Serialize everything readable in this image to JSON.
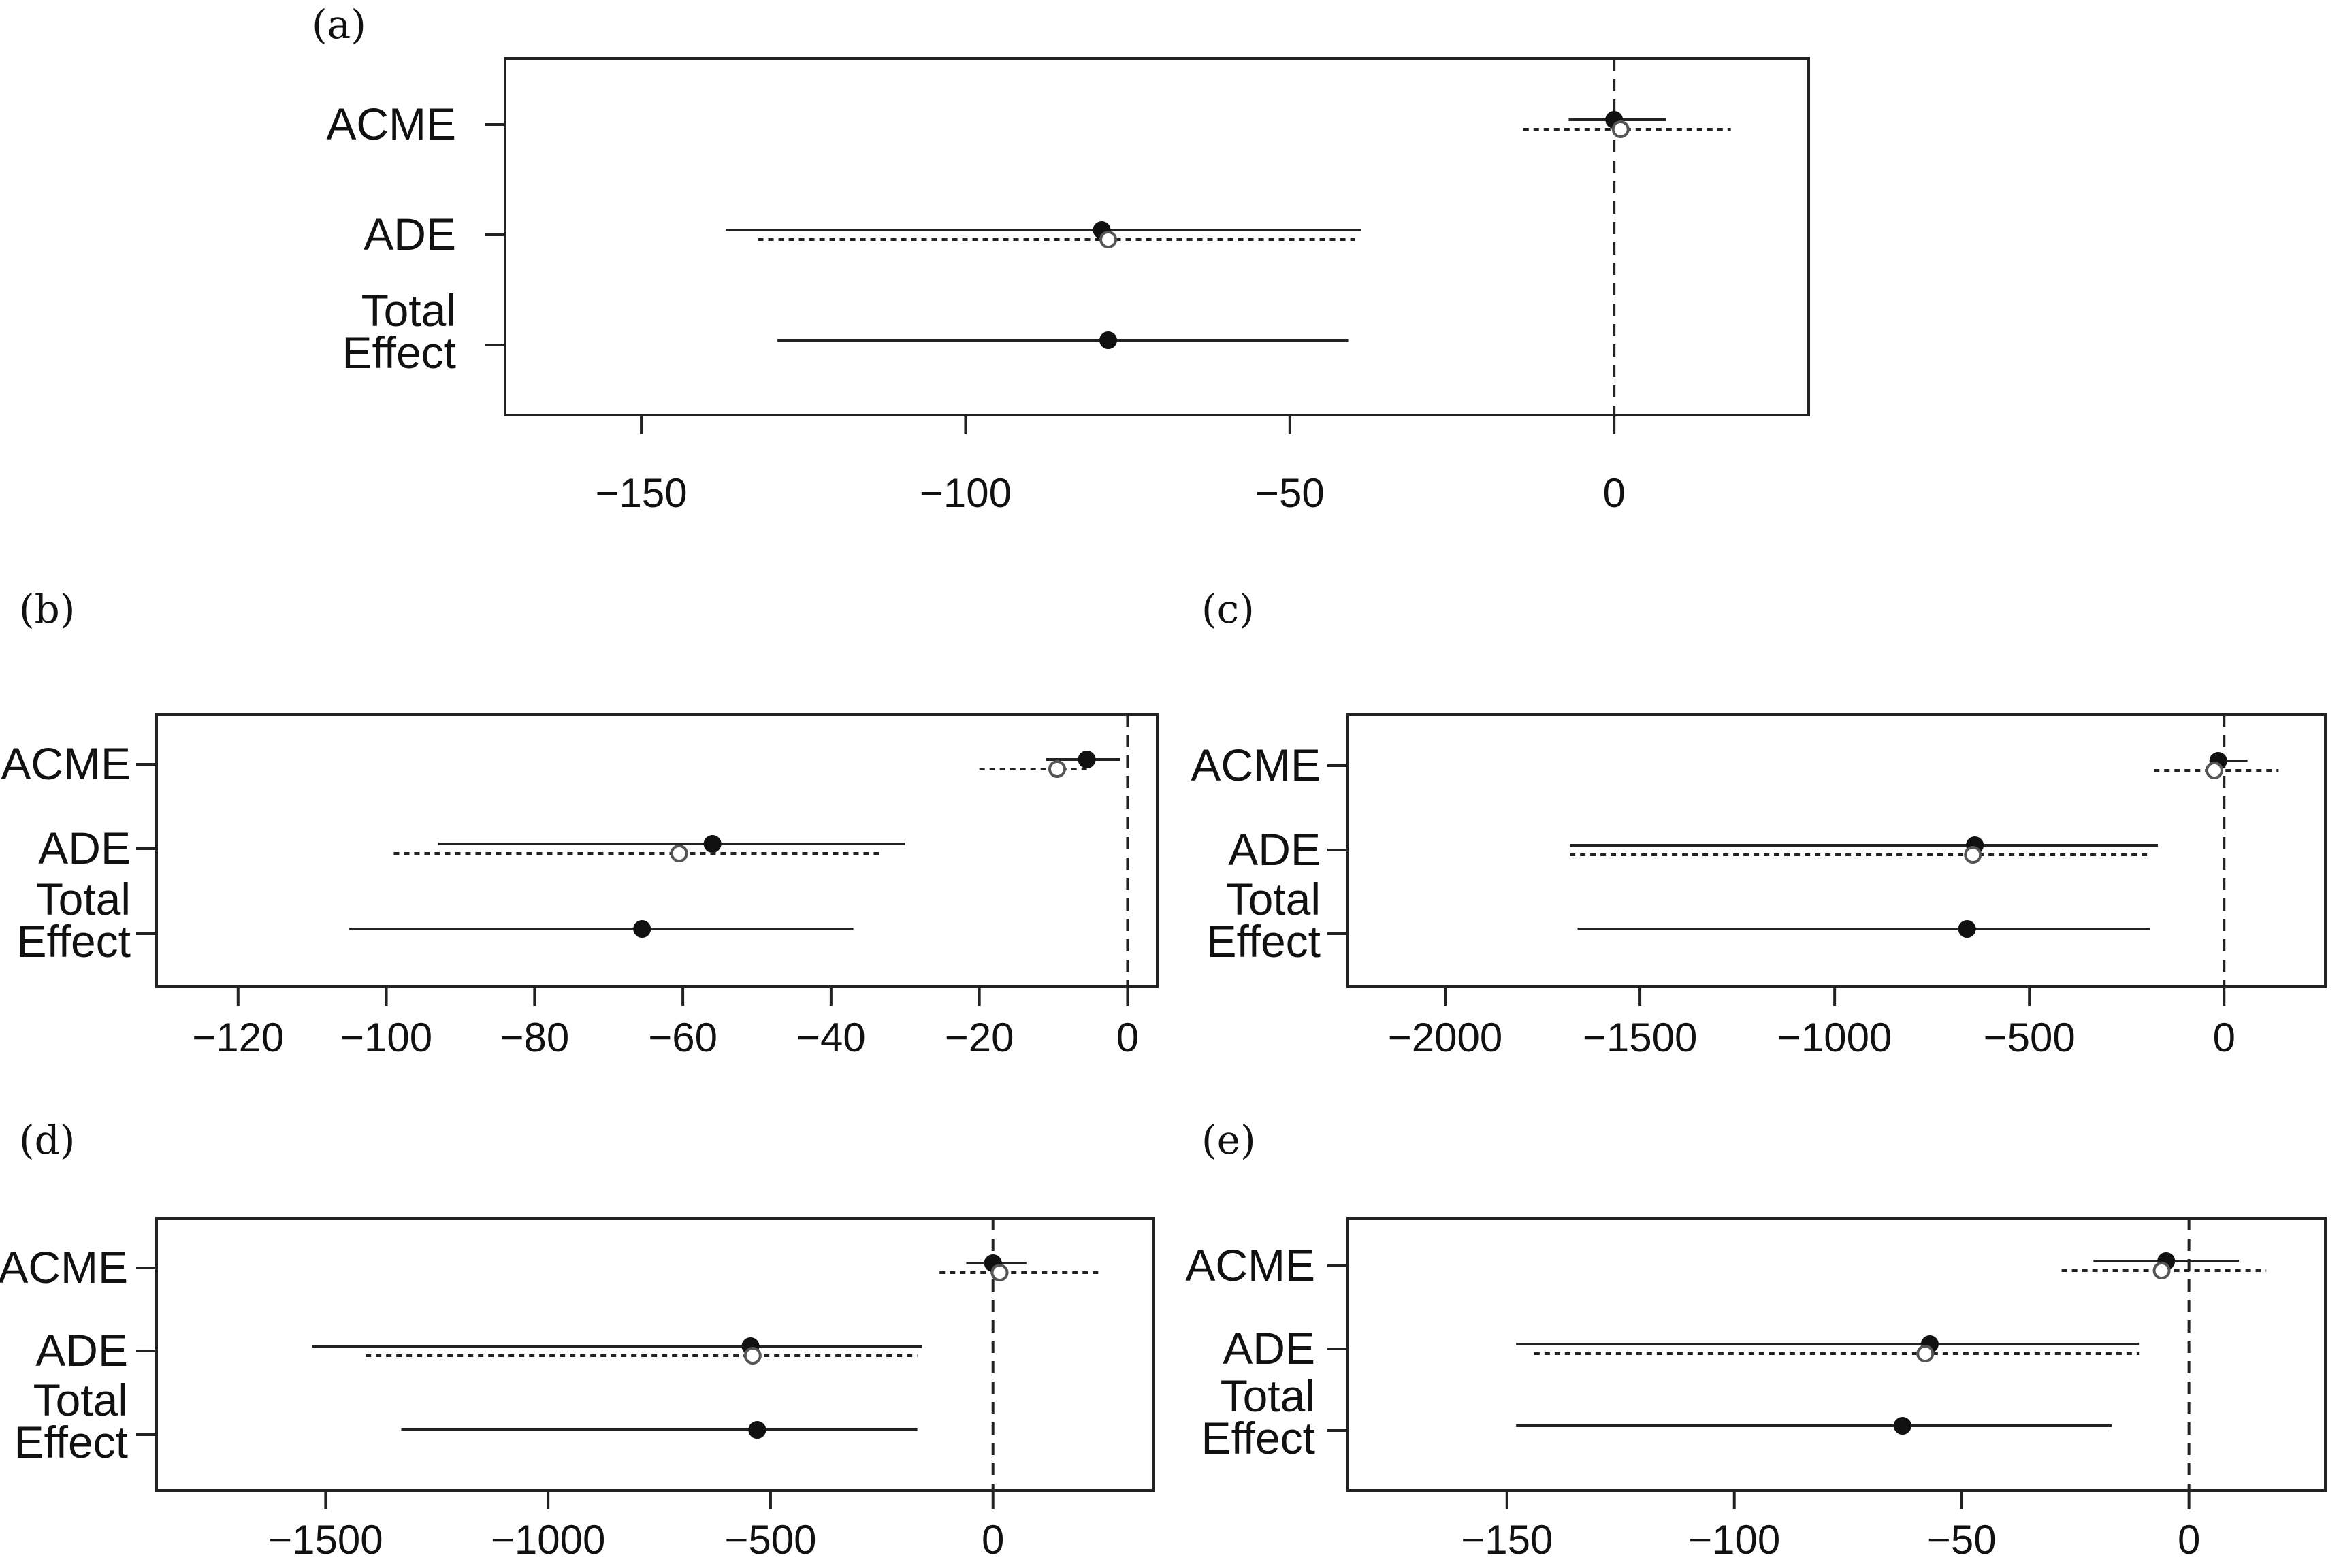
{
  "chart_data": [
    {
      "type": "scatter",
      "panel_label": "(a)",
      "categories": [
        "ACME",
        "ADE",
        "Total Effect"
      ],
      "category_lines": [
        [
          "ACME"
        ],
        [
          "ADE"
        ],
        [
          "Total",
          "Effect"
        ]
      ],
      "xlim": [
        -171,
        30
      ],
      "xticks": [
        -150,
        -100,
        -50,
        0
      ],
      "xtick_labels": [
        "−150",
        "−100",
        "−50",
        "0"
      ],
      "reference_line": 0,
      "series": [
        {
          "style": "solid",
          "marker": "filled",
          "points": [
            {
              "category": "ACME",
              "estimate": 0,
              "lower": -7,
              "upper": 8
            },
            {
              "category": "ADE",
              "estimate": -79,
              "lower": -137,
              "upper": -39
            },
            {
              "category": "Total Effect",
              "estimate": -78,
              "lower": -129,
              "upper": -41
            }
          ]
        },
        {
          "style": "dotted",
          "marker": "open",
          "points": [
            {
              "category": "ACME",
              "estimate": 1,
              "lower": -14,
              "upper": 18
            },
            {
              "category": "ADE",
              "estimate": -78,
              "lower": -132,
              "upper": -40
            }
          ]
        }
      ]
    },
    {
      "type": "scatter",
      "panel_label": "(b)",
      "categories": [
        "ACME",
        "ADE",
        "Total Effect"
      ],
      "category_lines": [
        [
          "ACME"
        ],
        [
          "ADE"
        ],
        [
          "Total",
          "Effect"
        ]
      ],
      "xlim": [
        -131,
        4
      ],
      "xticks": [
        -120,
        -100,
        -80,
        -60,
        -40,
        -20,
        0
      ],
      "xtick_labels": [
        "−120",
        "−100",
        "−80",
        "−60",
        "−40",
        "−20",
        "0"
      ],
      "reference_line": 0,
      "series": [
        {
          "style": "solid",
          "marker": "filled",
          "points": [
            {
              "category": "ACME",
              "estimate": -5.5,
              "lower": -11,
              "upper": -1
            },
            {
              "category": "ADE",
              "estimate": -56,
              "lower": -93,
              "upper": -30
            },
            {
              "category": "Total Effect",
              "estimate": -65.5,
              "lower": -105,
              "upper": -37
            }
          ]
        },
        {
          "style": "dotted",
          "marker": "open",
          "points": [
            {
              "category": "ACME",
              "estimate": -9.5,
              "lower": -20,
              "upper": -5
            },
            {
              "category": "ADE",
              "estimate": -60.5,
              "lower": -99,
              "upper": -33
            }
          ]
        }
      ]
    },
    {
      "type": "scatter",
      "panel_label": "(c)",
      "categories": [
        "ACME",
        "ADE",
        "Total Effect"
      ],
      "category_lines": [
        [
          "ACME"
        ],
        [
          "ADE"
        ],
        [
          "Total",
          "Effect"
        ]
      ],
      "xlim": [
        -2250,
        260
      ],
      "xticks": [
        -2000,
        -1500,
        -1000,
        -500,
        0
      ],
      "xtick_labels": [
        "−2000",
        "−1500",
        "−1000",
        "−500",
        "0"
      ],
      "reference_line": 0,
      "series": [
        {
          "style": "solid",
          "marker": "filled",
          "points": [
            {
              "category": "ACME",
              "estimate": -15,
              "lower": -30,
              "upper": 60
            },
            {
              "category": "ADE",
              "estimate": -640,
              "lower": -1680,
              "upper": -170
            },
            {
              "category": "Total Effect",
              "estimate": -660,
              "lower": -1660,
              "upper": -190
            }
          ]
        },
        {
          "style": "dotted",
          "marker": "open",
          "points": [
            {
              "category": "ACME",
              "estimate": -25,
              "lower": -180,
              "upper": 140
            },
            {
              "category": "ADE",
              "estimate": -645,
              "lower": -1680,
              "upper": -190
            }
          ]
        }
      ]
    },
    {
      "type": "scatter",
      "panel_label": "(d)",
      "categories": [
        "ACME",
        "ADE",
        "Total Effect"
      ],
      "category_lines": [
        [
          "ACME"
        ],
        [
          "ADE"
        ],
        [
          "Total",
          "Effect"
        ]
      ],
      "xlim": [
        -1880,
        360
      ],
      "xticks": [
        -1500,
        -1000,
        -500,
        0
      ],
      "xtick_labels": [
        "−1500",
        "−1000",
        "−500",
        "0"
      ],
      "reference_line": 0,
      "series": [
        {
          "style": "solid",
          "marker": "filled",
          "points": [
            {
              "category": "ACME",
              "estimate": 0,
              "lower": -60,
              "upper": 75
            },
            {
              "category": "ADE",
              "estimate": -545,
              "lower": -1530,
              "upper": -160
            },
            {
              "category": "Total Effect",
              "estimate": -530,
              "lower": -1330,
              "upper": -170
            }
          ]
        },
        {
          "style": "dotted",
          "marker": "open",
          "points": [
            {
              "category": "ACME",
              "estimate": 15,
              "lower": -120,
              "upper": 240
            },
            {
              "category": "ADE",
              "estimate": -540,
              "lower": -1410,
              "upper": -170
            }
          ]
        }
      ]
    },
    {
      "type": "scatter",
      "panel_label": "(e)",
      "categories": [
        "ACME",
        "ADE",
        "Total Effect"
      ],
      "category_lines": [
        [
          "ACME"
        ],
        [
          "ADE"
        ],
        [
          "Total",
          "Effect"
        ]
      ],
      "xlim": [
        -185,
        30
      ],
      "xticks": [
        -150,
        -100,
        -50,
        0
      ],
      "xtick_labels": [
        "−150",
        "−100",
        "−50",
        "0"
      ],
      "reference_line": 0,
      "series": [
        {
          "style": "solid",
          "marker": "filled",
          "points": [
            {
              "category": "ACME",
              "estimate": -5,
              "lower": -21,
              "upper": 11
            },
            {
              "category": "ADE",
              "estimate": -57,
              "lower": -148,
              "upper": -11
            },
            {
              "category": "Total Effect",
              "estimate": -63,
              "lower": -148,
              "upper": -17
            }
          ]
        },
        {
          "style": "dotted",
          "marker": "open",
          "points": [
            {
              "category": "ACME",
              "estimate": -6,
              "lower": -28,
              "upper": 17
            },
            {
              "category": "ADE",
              "estimate": -58,
              "lower": -144,
              "upper": -11
            }
          ]
        }
      ]
    }
  ]
}
